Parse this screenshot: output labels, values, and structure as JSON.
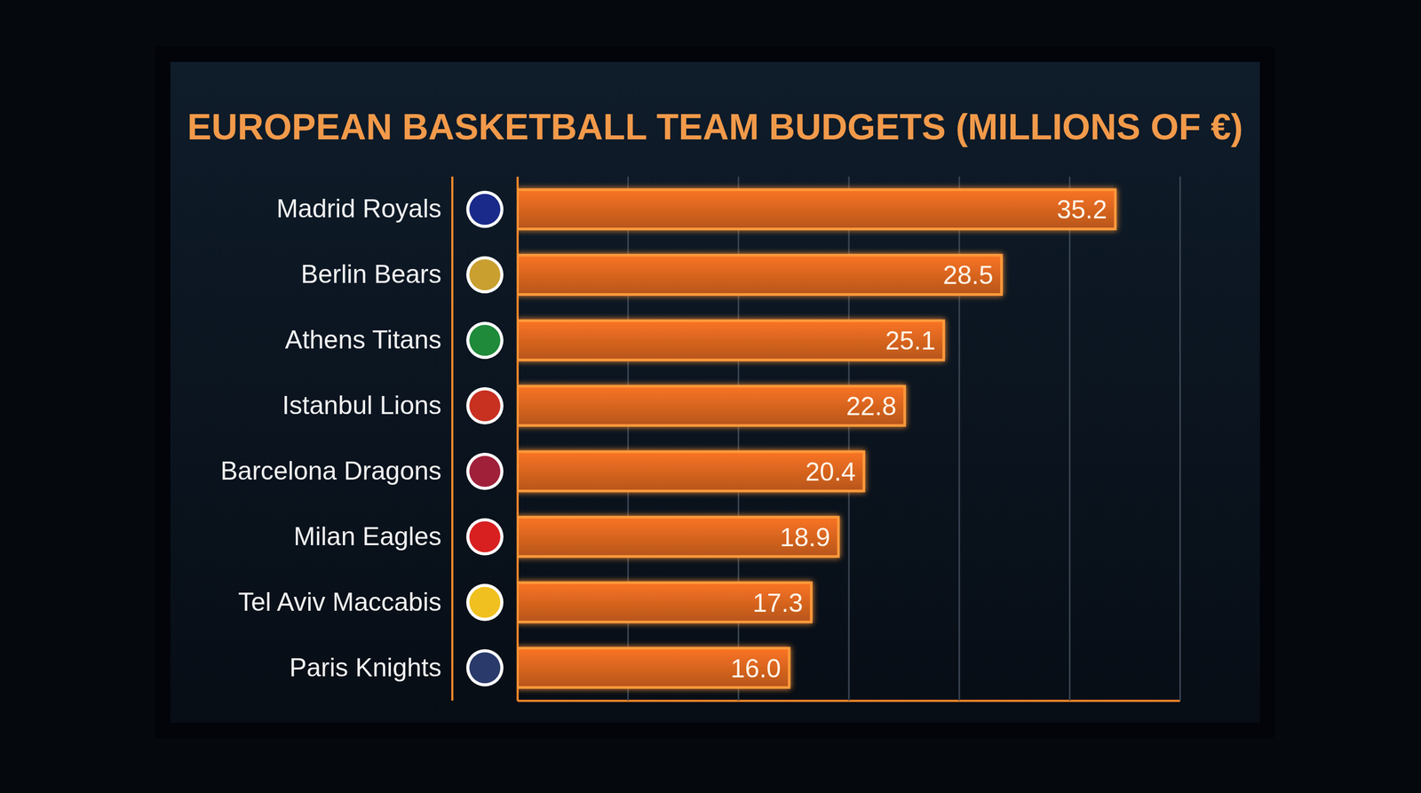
{
  "chart_data": {
    "type": "bar",
    "title": "EUROPEAN BASKETBALL TEAM BUDGETS (MILLIONS OF €)",
    "orientation": "horizontal",
    "categories": [
      "Madrid Royals",
      "Berlin Bears",
      "Athens Titans",
      "Istanbul Lions",
      "Barcelona Dragons",
      "Milan Eagles",
      "Tel Aviv Maccabis",
      "Paris Knights"
    ],
    "values": [
      35.2,
      28.5,
      25.1,
      22.8,
      20.4,
      18.9,
      17.3,
      16.0
    ],
    "value_labels": [
      "35.2",
      "28.5",
      "25.1",
      "22.8",
      "20.4",
      "18.9",
      "17.3",
      "16.0"
    ],
    "color": "#d9651f",
    "xlim": [
      0,
      39
    ],
    "xticks": [
      0,
      6.5,
      13,
      19.5,
      26,
      32.5,
      39
    ],
    "grid": true,
    "data_labels": true,
    "tick_labels": "y"
  }
}
